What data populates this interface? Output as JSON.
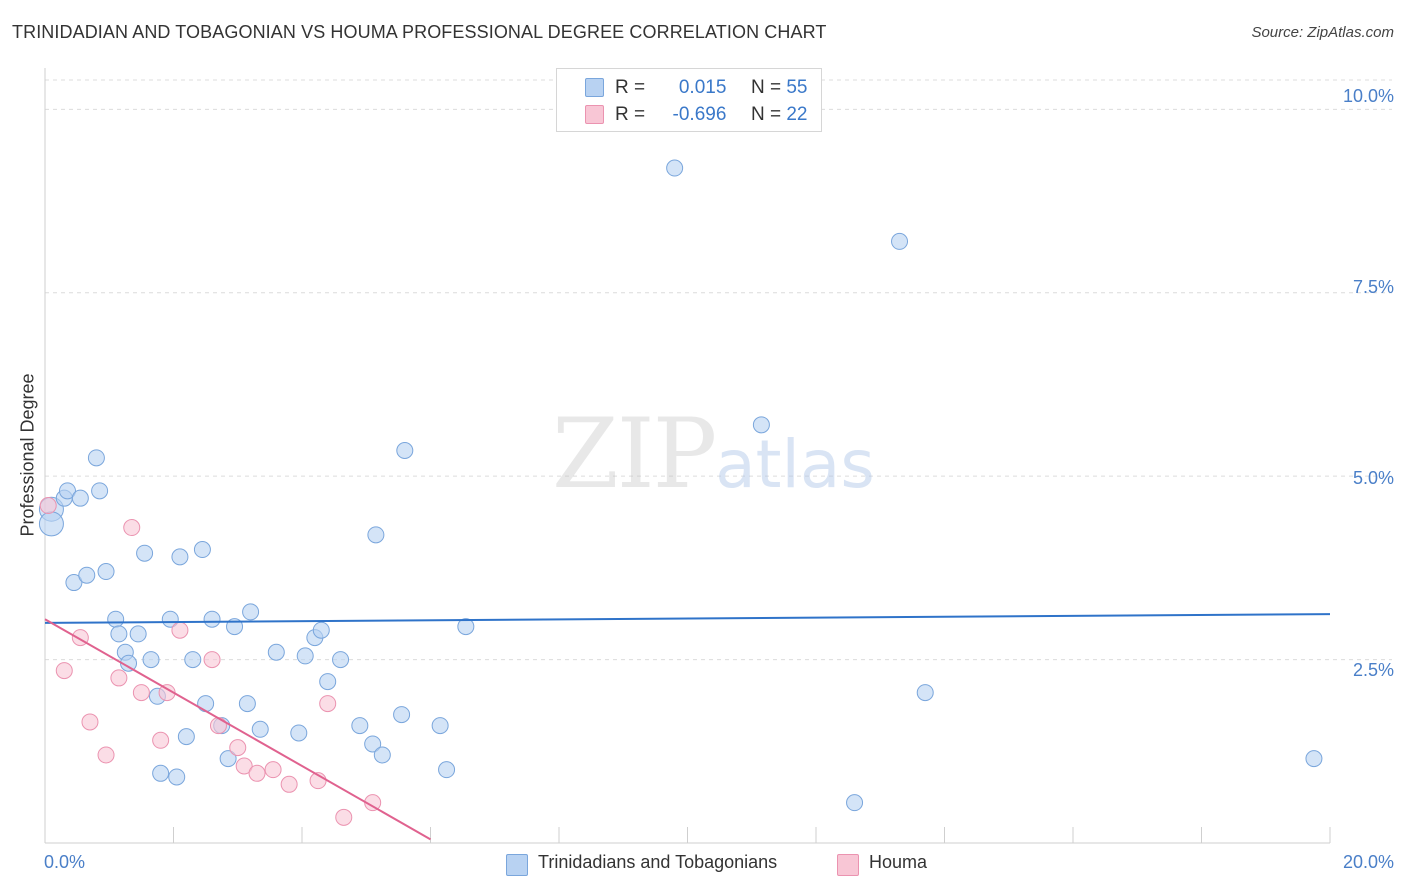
{
  "header": {
    "title": "TRINIDADIAN AND TOBAGONIAN VS HOUMA PROFESSIONAL DEGREE CORRELATION CHART",
    "source": "Source: ZipAtlas.com"
  },
  "watermark": {
    "zip": "ZIP",
    "atlas": "atlas"
  },
  "legend": {
    "r_label": "R =",
    "n_label": "N =",
    "rows": [
      {
        "r": "0.015",
        "n": "55"
      },
      {
        "r": "-0.696",
        "n": "22"
      }
    ]
  },
  "colors": {
    "blue_fill": "#b8d2f2",
    "blue_stroke": "#7aa6dc",
    "blue_line": "#2f73c9",
    "pink_fill": "#f8c6d5",
    "pink_stroke": "#eb93b0",
    "pink_line": "#e0628f"
  },
  "chart_data": {
    "type": "scatter",
    "title": "TRINIDADIAN AND TOBAGONIAN VS HOUMA PROFESSIONAL DEGREE CORRELATION CHART",
    "xlabel": "",
    "ylabel": "Professional Degree",
    "xlim": [
      0,
      20
    ],
    "ylim": [
      0,
      10.4
    ],
    "x_tick_labels": [
      "0.0%",
      "20.0%"
    ],
    "y_ticks": [
      2.5,
      5.0,
      7.5,
      10.0
    ],
    "y_tick_labels": [
      "2.5%",
      "5.0%",
      "7.5%",
      "10.0%"
    ],
    "grid": true,
    "series": [
      {
        "name": "Trinidadians and Tobagonians",
        "color": "blue",
        "r": 0.015,
        "n": 55,
        "trend": [
          [
            0,
            3.0
          ],
          [
            20,
            3.12
          ]
        ],
        "points": [
          [
            0.1,
            4.55
          ],
          [
            0.1,
            4.35
          ],
          [
            0.3,
            4.7
          ],
          [
            0.35,
            4.8
          ],
          [
            0.55,
            4.7
          ],
          [
            0.8,
            5.25
          ],
          [
            0.85,
            4.8
          ],
          [
            0.45,
            3.55
          ],
          [
            0.65,
            3.65
          ],
          [
            0.95,
            3.7
          ],
          [
            1.1,
            3.05
          ],
          [
            1.15,
            2.85
          ],
          [
            1.25,
            2.6
          ],
          [
            1.3,
            2.45
          ],
          [
            1.45,
            2.85
          ],
          [
            1.55,
            3.95
          ],
          [
            1.65,
            2.5
          ],
          [
            1.75,
            2.0
          ],
          [
            1.8,
            0.95
          ],
          [
            1.95,
            3.05
          ],
          [
            2.05,
            0.9
          ],
          [
            2.1,
            3.9
          ],
          [
            2.2,
            1.45
          ],
          [
            2.3,
            2.5
          ],
          [
            2.45,
            4.0
          ],
          [
            2.5,
            1.9
          ],
          [
            2.6,
            3.05
          ],
          [
            2.75,
            1.6
          ],
          [
            2.85,
            1.15
          ],
          [
            2.95,
            2.95
          ],
          [
            3.15,
            1.9
          ],
          [
            3.2,
            3.15
          ],
          [
            3.35,
            1.55
          ],
          [
            3.6,
            2.6
          ],
          [
            3.95,
            1.5
          ],
          [
            4.05,
            2.55
          ],
          [
            4.2,
            2.8
          ],
          [
            4.3,
            2.9
          ],
          [
            4.4,
            2.2
          ],
          [
            4.6,
            2.5
          ],
          [
            4.9,
            1.6
          ],
          [
            5.1,
            1.35
          ],
          [
            5.15,
            4.2
          ],
          [
            5.25,
            1.2
          ],
          [
            5.55,
            1.75
          ],
          [
            5.6,
            5.35
          ],
          [
            6.15,
            1.6
          ],
          [
            6.25,
            1.0
          ],
          [
            6.55,
            2.95
          ],
          [
            9.8,
            9.2
          ],
          [
            11.15,
            5.7
          ],
          [
            12.6,
            0.55
          ],
          [
            13.3,
            8.2
          ],
          [
            13.7,
            2.05
          ],
          [
            19.75,
            1.15
          ]
        ]
      },
      {
        "name": "Houma",
        "color": "pink",
        "r": -0.696,
        "n": 22,
        "trend": [
          [
            0,
            3.05
          ],
          [
            6.0,
            0.05
          ]
        ],
        "points": [
          [
            0.05,
            4.6
          ],
          [
            0.3,
            2.35
          ],
          [
            0.55,
            2.8
          ],
          [
            0.7,
            1.65
          ],
          [
            0.95,
            1.2
          ],
          [
            1.15,
            2.25
          ],
          [
            1.35,
            4.3
          ],
          [
            1.5,
            2.05
          ],
          [
            1.8,
            1.4
          ],
          [
            1.9,
            2.05
          ],
          [
            2.1,
            2.9
          ],
          [
            2.6,
            2.5
          ],
          [
            2.7,
            1.6
          ],
          [
            3.0,
            1.3
          ],
          [
            3.1,
            1.05
          ],
          [
            3.3,
            0.95
          ],
          [
            3.55,
            1.0
          ],
          [
            3.8,
            0.8
          ],
          [
            4.25,
            0.85
          ],
          [
            4.4,
            1.9
          ],
          [
            4.65,
            0.35
          ],
          [
            5.1,
            0.55
          ]
        ]
      }
    ]
  }
}
